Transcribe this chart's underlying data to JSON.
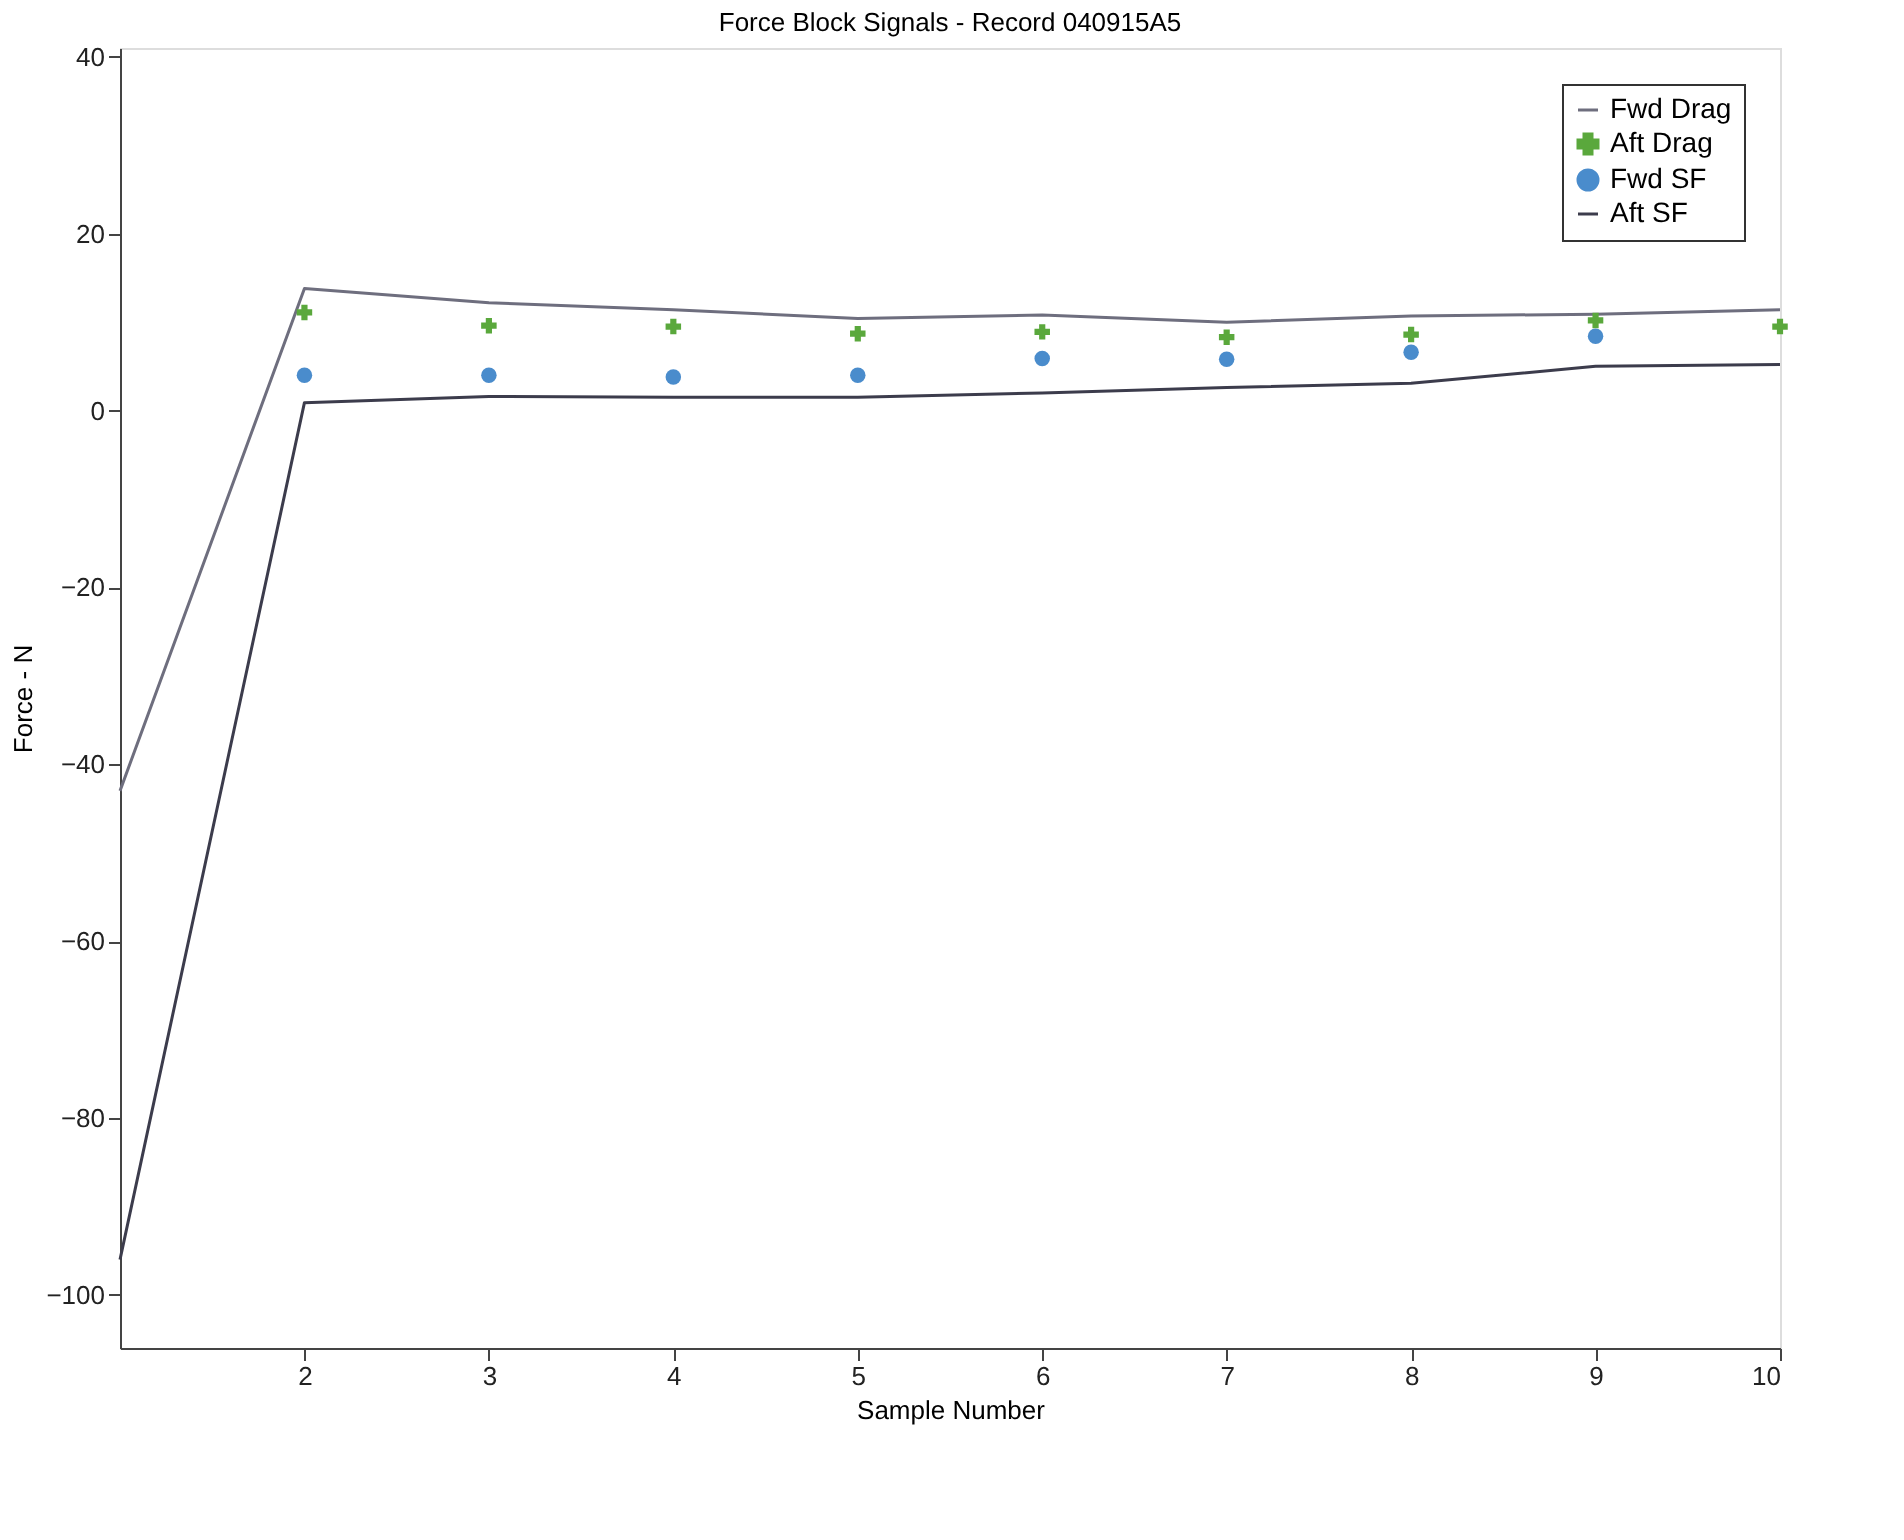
{
  "chart_data": {
    "type": "line",
    "title": "Force Block Signals - Record 040915A5",
    "xlabel": "Sample Number",
    "ylabel": "Force - N",
    "x": [
      1,
      2,
      3,
      4,
      5,
      6,
      7,
      8,
      9,
      10
    ],
    "series": [
      {
        "name": "Fwd Drag",
        "marker": "none",
        "color": "#6e6e7e",
        "values": [
          -43,
          13.8,
          12.2,
          11.4,
          10.4,
          10.8,
          10.0,
          10.7,
          10.9,
          11.4
        ]
      },
      {
        "name": "Aft Drag",
        "type": "scatter",
        "marker": "cross",
        "color": "#5aa83c",
        "values": [
          null,
          11.1,
          9.6,
          9.5,
          8.7,
          8.9,
          8.3,
          8.6,
          10.2,
          9.5
        ]
      },
      {
        "name": "Fwd SF",
        "type": "scatter",
        "marker": "circle",
        "color": "#4a8ccc",
        "values": [
          null,
          4.0,
          4.0,
          3.8,
          4.0,
          5.9,
          5.8,
          6.6,
          8.4,
          null
        ]
      },
      {
        "name": "Aft SF",
        "marker": "none",
        "color": "#3c3c4c",
        "values": [
          -96,
          0.9,
          1.6,
          1.5,
          1.5,
          2.0,
          2.6,
          3.1,
          5.0,
          5.2
        ]
      }
    ],
    "xlim": [
      1,
      10
    ],
    "xticks": [
      2,
      3,
      4,
      5,
      6,
      7,
      8,
      9,
      10
    ],
    "ylim": [
      -106,
      41
    ],
    "yticks": [
      -100,
      -80,
      -60,
      -40,
      -20,
      0,
      20,
      40
    ],
    "grid": false,
    "legend": "top right",
    "line_style": "solid"
  }
}
